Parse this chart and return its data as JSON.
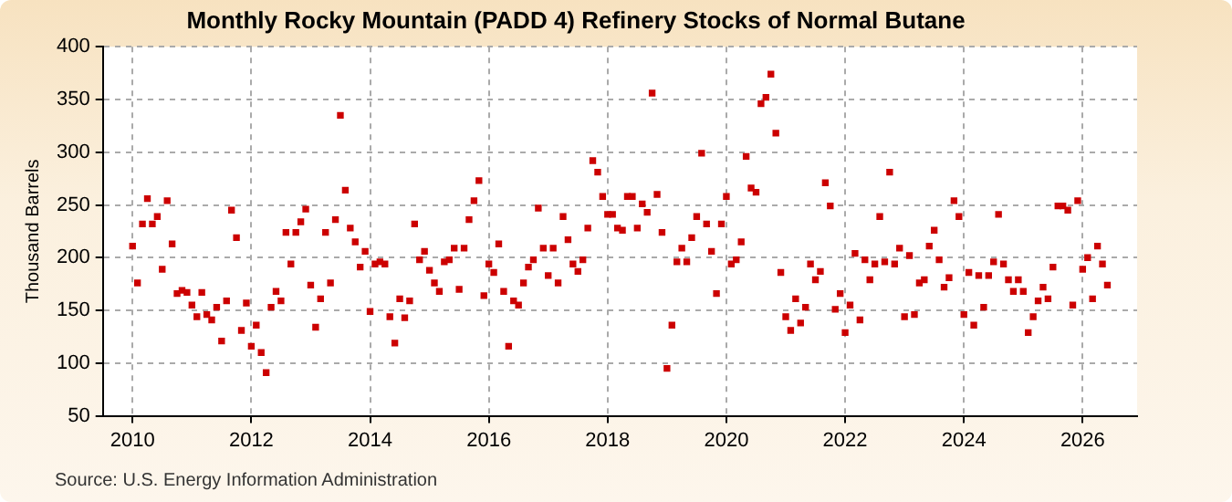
{
  "chart_data": {
    "type": "scatter",
    "title": "Monthly Rocky Mountain (PADD 4) Refinery Stocks of Normal Butane",
    "ylabel": "Thousand Barrels",
    "annotations": [
      "Source: U.S. Energy Information Administration"
    ],
    "x": [
      "2010-01",
      "2010-02",
      "2010-03",
      "2010-04",
      "2010-05",
      "2010-06",
      "2010-07",
      "2010-08",
      "2010-09",
      "2010-10",
      "2010-11",
      "2010-12",
      "2011-01",
      "2011-02",
      "2011-03",
      "2011-04",
      "2011-05",
      "2011-06",
      "2011-07",
      "2011-08",
      "2011-09",
      "2011-10",
      "2011-11",
      "2011-12",
      "2012-01",
      "2012-02",
      "2012-03",
      "2012-04",
      "2012-05",
      "2012-06",
      "2012-07",
      "2012-08",
      "2012-09",
      "2012-10",
      "2012-11",
      "2012-12",
      "2013-01",
      "2013-02",
      "2013-03",
      "2013-04",
      "2013-05",
      "2013-06",
      "2013-07",
      "2013-08",
      "2013-09",
      "2013-10",
      "2013-11",
      "2013-12",
      "2014-01",
      "2014-02",
      "2014-03",
      "2014-04",
      "2014-05",
      "2014-06",
      "2014-07",
      "2014-08",
      "2014-09",
      "2014-10",
      "2014-11",
      "2014-12",
      "2015-01",
      "2015-02",
      "2015-03",
      "2015-04",
      "2015-05",
      "2015-06",
      "2015-07",
      "2015-08",
      "2015-09",
      "2015-10",
      "2015-11",
      "2015-12",
      "2016-01",
      "2016-02",
      "2016-03",
      "2016-04",
      "2016-05",
      "2016-06",
      "2016-07",
      "2016-08",
      "2016-09",
      "2016-10",
      "2016-11",
      "2016-12",
      "2017-01",
      "2017-02",
      "2017-03",
      "2017-04",
      "2017-05",
      "2017-06",
      "2017-07",
      "2017-08",
      "2017-09",
      "2017-10",
      "2017-11",
      "2017-12",
      "2018-01",
      "2018-02",
      "2018-03",
      "2018-04",
      "2018-05",
      "2018-06",
      "2018-07",
      "2018-08",
      "2018-09",
      "2018-10",
      "2018-11",
      "2018-12",
      "2019-01",
      "2019-02",
      "2019-03",
      "2019-04",
      "2019-05",
      "2019-06",
      "2019-07",
      "2019-08",
      "2019-09",
      "2019-10",
      "2019-11",
      "2019-12",
      "2020-01",
      "2020-02",
      "2020-03",
      "2020-04",
      "2020-05",
      "2020-06",
      "2020-07",
      "2020-08",
      "2020-09",
      "2020-10",
      "2020-11",
      "2020-12",
      "2021-01",
      "2021-02",
      "2021-03",
      "2021-04",
      "2021-05",
      "2021-06",
      "2021-07",
      "2021-08",
      "2021-09",
      "2021-10",
      "2021-11",
      "2021-12",
      "2022-01",
      "2022-02",
      "2022-03",
      "2022-04",
      "2022-05",
      "2022-06",
      "2022-07",
      "2022-08",
      "2022-09",
      "2022-10",
      "2022-11",
      "2022-12",
      "2023-01",
      "2023-02",
      "2023-03",
      "2023-04",
      "2023-05",
      "2023-06",
      "2023-07",
      "2023-08",
      "2023-09",
      "2023-10",
      "2023-11",
      "2023-12",
      "2024-01",
      "2024-02",
      "2024-03",
      "2024-04",
      "2024-05",
      "2024-06",
      "2024-07",
      "2024-08",
      "2024-09",
      "2024-10",
      "2024-11",
      "2024-12",
      "2025-01",
      "2025-02",
      "2025-03",
      "2025-04",
      "2025-05",
      "2025-06",
      "2025-07",
      "2025-08",
      "2025-09",
      "2025-10",
      "2025-11",
      "2025-12",
      "2026-01",
      "2026-02",
      "2026-03",
      "2026-04",
      "2026-05",
      "2026-06"
    ],
    "series": [
      {
        "color": "#cc0000",
        "values": [
          211,
          176,
          232,
          256,
          232,
          239,
          189,
          254,
          213,
          166,
          169,
          167,
          155,
          144,
          167,
          146,
          141,
          153,
          121,
          159,
          245,
          219,
          131,
          157,
          116,
          136,
          110,
          91,
          153,
          168,
          159,
          224,
          194,
          224,
          234,
          246,
          174,
          134,
          161,
          224,
          176,
          236,
          335,
          264,
          228,
          215,
          191,
          206,
          149,
          194,
          196,
          194,
          144,
          119,
          161,
          143,
          159,
          232,
          198,
          206,
          188,
          176,
          168,
          196,
          198,
          209,
          170,
          209,
          236,
          254,
          273,
          164,
          194,
          186,
          213,
          168,
          116,
          159,
          155,
          176,
          191,
          198,
          247,
          209,
          183,
          209,
          176,
          239,
          217,
          194,
          187,
          198,
          228,
          292,
          281,
          258,
          241,
          241,
          228,
          226,
          258,
          258,
          228,
          251,
          243,
          356,
          260,
          224,
          95,
          136,
          196,
          209,
          196,
          219,
          239,
          299,
          232,
          206,
          166,
          232,
          258,
          194,
          198,
          215,
          296,
          266,
          262,
          346,
          352,
          374,
          318,
          186,
          144,
          131,
          161,
          138,
          153,
          194,
          179,
          187,
          271,
          249,
          151,
          166,
          129,
          155,
          204,
          141,
          198,
          179,
          194,
          239,
          196,
          281,
          194,
          209,
          144,
          202,
          146,
          176,
          179,
          211,
          226,
          198,
          172,
          181,
          254,
          239,
          146,
          186,
          136,
          183,
          153,
          183,
          196,
          241,
          194,
          179,
          168,
          179,
          168,
          129,
          144,
          159,
          172,
          161,
          191,
          249,
          249,
          245,
          155,
          254,
          189,
          200,
          161,
          211,
          194,
          174
        ]
      }
    ],
    "xlim": [
      "2009-07",
      "2026-12"
    ],
    "xticks": [
      "2010",
      "2012",
      "2014",
      "2016",
      "2018",
      "2020",
      "2022",
      "2024",
      "2026"
    ],
    "ylim": [
      50,
      400
    ],
    "yticks": [
      50,
      100,
      150,
      200,
      250,
      300,
      350,
      400
    ],
    "grid": true,
    "marker": "square",
    "legend": false
  }
}
